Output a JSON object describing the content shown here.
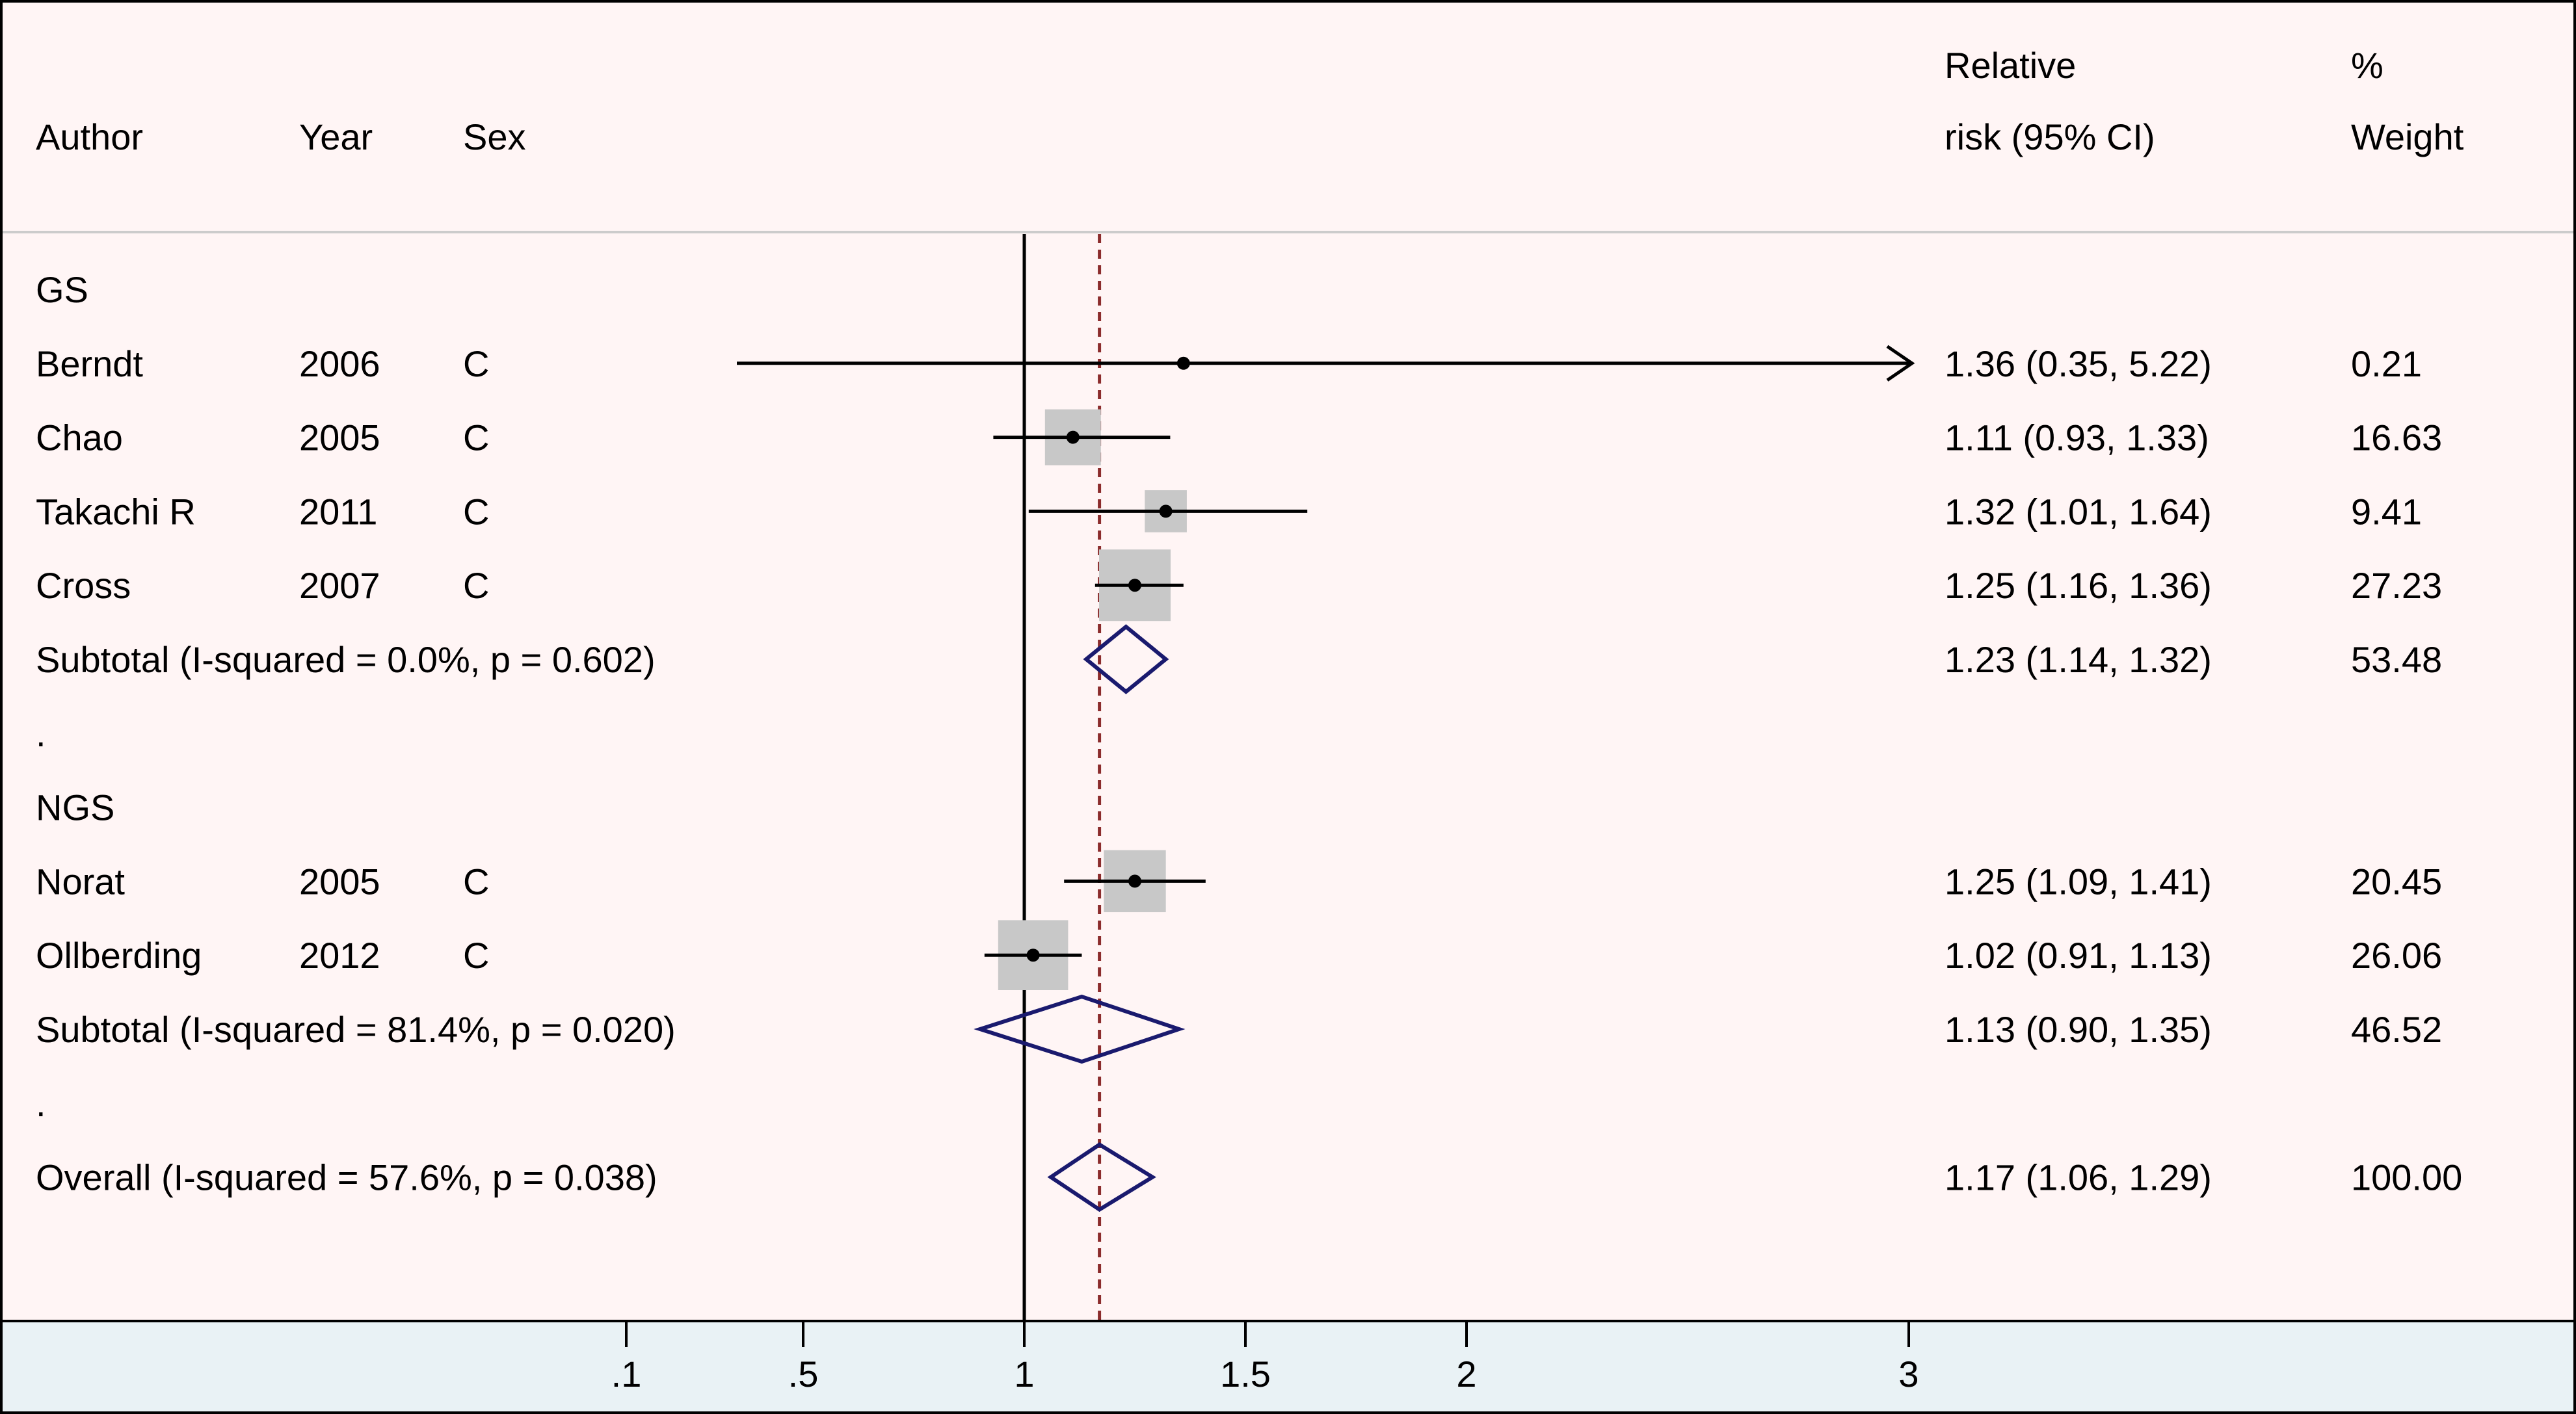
{
  "chart_data": {
    "type": "forest",
    "colors": {
      "background": "#fff5f5",
      "axis_band": "#e9f2f5",
      "weight_box": "#c8c8c8",
      "diamond": "#1a1a6e",
      "overall_line": "#8b2c2c"
    },
    "columns": {
      "author": "Author",
      "year": "Year",
      "sex": "Sex",
      "rr_line1": "Relative",
      "rr_line2": "risk (95% CI)",
      "weight_line1": "%",
      "weight_line2": "Weight"
    },
    "rows": [
      {
        "kind": "group",
        "label": "GS"
      },
      {
        "kind": "study",
        "author": "Berndt",
        "year": "2006",
        "sex": "C",
        "est": 1.36,
        "lo": 0.35,
        "hi": 5.22,
        "arrow_right": true,
        "text": "1.36 (0.35, 5.22)",
        "weight": 0.21,
        "weight_text": "0.21"
      },
      {
        "kind": "study",
        "author": "Chao",
        "year": "2005",
        "sex": "C",
        "est": 1.11,
        "lo": 0.93,
        "hi": 1.33,
        "text": "1.11 (0.93, 1.33)",
        "weight": 16.63,
        "weight_text": "16.63"
      },
      {
        "kind": "study",
        "author": "Takachi R",
        "year": "2011",
        "sex": "C",
        "est": 1.32,
        "lo": 1.01,
        "hi": 1.64,
        "text": "1.32 (1.01, 1.64)",
        "weight": 9.41,
        "weight_text": "9.41"
      },
      {
        "kind": "study",
        "author": "Cross",
        "year": "2007",
        "sex": "C",
        "est": 1.25,
        "lo": 1.16,
        "hi": 1.36,
        "text": "1.25 (1.16, 1.36)",
        "weight": 27.23,
        "weight_text": "27.23"
      },
      {
        "kind": "subtotal",
        "label": "Subtotal  (I-squared = 0.0%, p = 0.602)",
        "est": 1.23,
        "lo": 1.14,
        "hi": 1.32,
        "text": "1.23 (1.14, 1.32)",
        "weight_text": "53.48"
      },
      {
        "kind": "spacer",
        "label": "."
      },
      {
        "kind": "group",
        "label": "NGS"
      },
      {
        "kind": "study",
        "author": "Norat",
        "year": "2005",
        "sex": "C",
        "est": 1.25,
        "lo": 1.09,
        "hi": 1.41,
        "text": "1.25 (1.09, 1.41)",
        "weight": 20.45,
        "weight_text": "20.45"
      },
      {
        "kind": "study",
        "author": "Ollberding",
        "year": "2012",
        "sex": "C",
        "est": 1.02,
        "lo": 0.91,
        "hi": 1.13,
        "text": "1.02 (0.91, 1.13)",
        "weight": 26.06,
        "weight_text": "26.06"
      },
      {
        "kind": "subtotal",
        "label": "Subtotal  (I-squared = 81.4%, p = 0.020)",
        "est": 1.13,
        "lo": 0.9,
        "hi": 1.35,
        "text": "1.13 (0.90, 1.35)",
        "weight_text": "46.52"
      },
      {
        "kind": "spacer",
        "label": "."
      },
      {
        "kind": "overall",
        "label": "Overall  (I-squared = 57.6%, p = 0.038)",
        "est": 1.17,
        "lo": 1.06,
        "hi": 1.29,
        "text": "1.17 (1.06, 1.29)",
        "weight_text": "100.00"
      }
    ],
    "x_axis": {
      "scale": "linear",
      "ticks": [
        0.1,
        0.5,
        1,
        1.5,
        2,
        3
      ],
      "tick_labels": [
        ".1",
        ".5",
        "1",
        "1.5",
        "2",
        "3"
      ],
      "null_value": 1,
      "overall_line": 1.17
    }
  }
}
